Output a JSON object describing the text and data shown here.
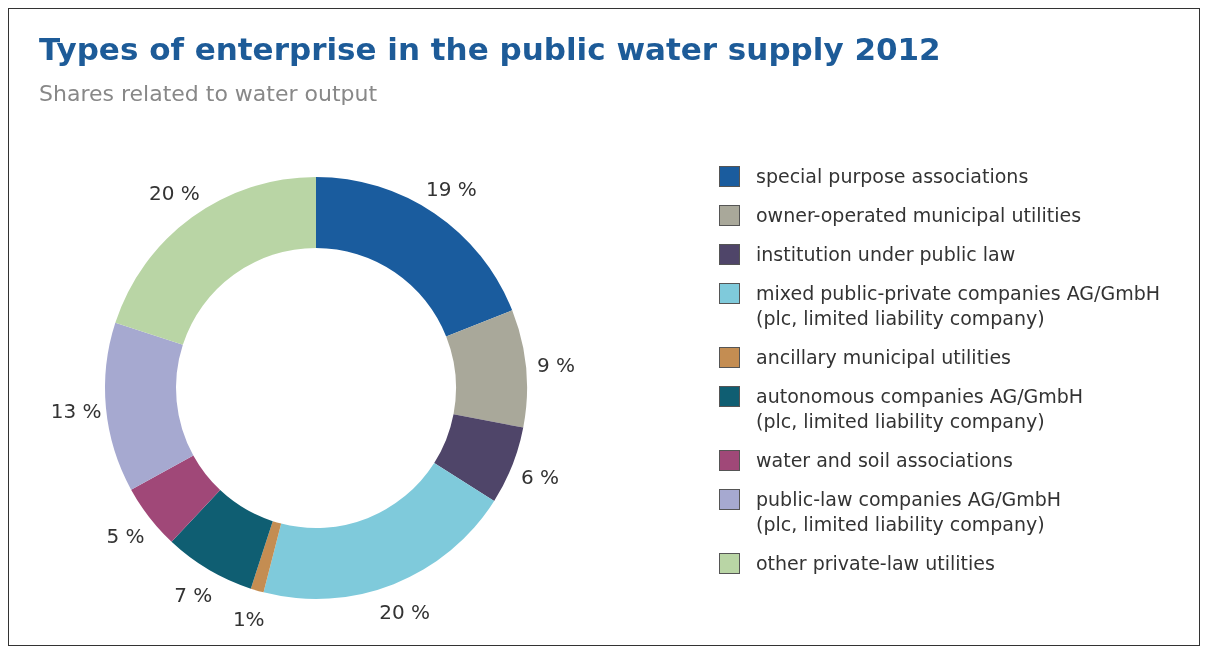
{
  "chart_data": {
    "type": "donut",
    "title": "Types of enterprise in the public water supply 2012",
    "subtitle": "Shares related to water output",
    "categories": [
      "special purpose associations",
      "owner-operated municipal utilities",
      "institution under public law",
      "mixed public-private companies AG/GmbH\n(plc, limited liability company)",
      "ancillary municipal utilities",
      "autonomous companies AG/GmbH\n(plc, limited liability company)",
      "water and soil associations",
      "public-law companies AG/GmbH\n(plc, limited liability company)",
      "other private-law utilities"
    ],
    "values": [
      19,
      9,
      6,
      20,
      1,
      7,
      5,
      13,
      20
    ],
    "value_labels": [
      "19 %",
      "9 %",
      "6 %",
      "20 %",
      "1%",
      "7 %",
      "5 %",
      "13 %",
      "20 %"
    ],
    "colors": [
      "#1a5c9e",
      "#a9a89a",
      "#4f4569",
      "#7fcadb",
      "#c48d52",
      "#0f5e72",
      "#a04878",
      "#a6a9d0",
      "#b9d5a5"
    ],
    "legend": "right"
  }
}
